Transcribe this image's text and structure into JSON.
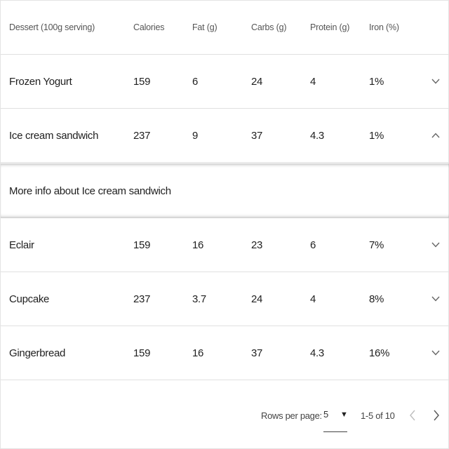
{
  "columns": [
    "Dessert (100g serving)",
    "Calories",
    "Fat (g)",
    "Carbs (g)",
    "Protein (g)",
    "Iron (%)"
  ],
  "rows": [
    {
      "name": "Frozen Yogurt",
      "calories": "159",
      "fat": "6",
      "carbs": "24",
      "protein": "4",
      "iron": "1%",
      "expanded": false
    },
    {
      "name": "Ice cream sandwich",
      "calories": "237",
      "fat": "9",
      "carbs": "37",
      "protein": "4.3",
      "iron": "1%",
      "expanded": true
    },
    {
      "name": "Eclair",
      "calories": "159",
      "fat": "16",
      "carbs": "23",
      "protein": "6",
      "iron": "7%",
      "expanded": false
    },
    {
      "name": "Cupcake",
      "calories": "237",
      "fat": "3.7",
      "carbs": "24",
      "protein": "4",
      "iron": "8%",
      "expanded": false
    },
    {
      "name": "Gingerbread",
      "calories": "159",
      "fat": "16",
      "carbs": "37",
      "protein": "4.3",
      "iron": "16%",
      "expanded": false
    }
  ],
  "detail": {
    "text": "More info about Ice cream sandwich"
  },
  "footer": {
    "rows_per_page_label": "Rows per page:",
    "rows_per_page_value": "5",
    "range": "1-5 of 10"
  },
  "icons": {
    "expand": "chevron-down-icon",
    "collapse": "chevron-up-icon",
    "prev": "chevron-left-icon",
    "next": "chevron-right-icon",
    "dropdown": "caret-down-icon"
  }
}
